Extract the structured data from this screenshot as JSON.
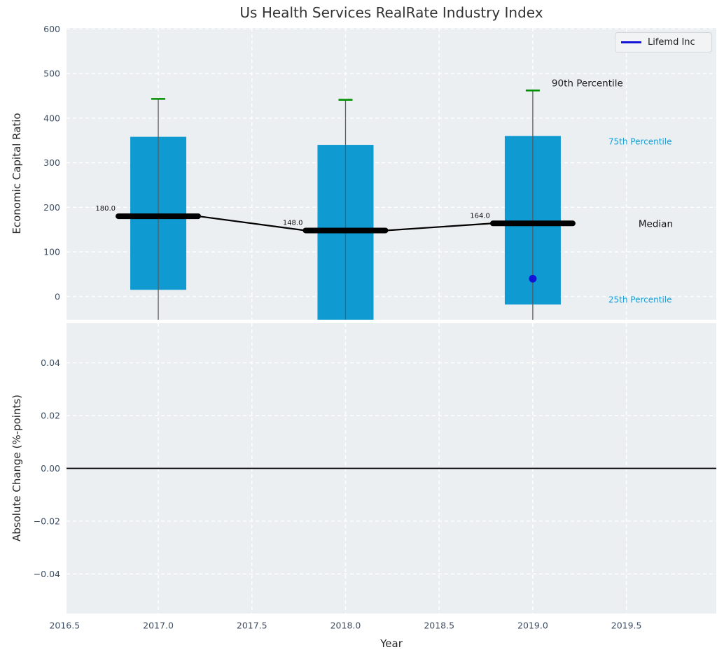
{
  "colors": {
    "bar": "#0f9ad2",
    "accent_blue": "#1414d8",
    "green_cap": "#008f00",
    "plot_bg": "#ebeff1",
    "grid": "#ffffff",
    "tick_text": "#3e4e63",
    "cyan_text": "#189fd8",
    "median_line": "#000000",
    "whisker": "#5a5a5a",
    "zero_line": "#000000",
    "title_text": "#333333"
  },
  "chart_data": [
    {
      "type": "box-bar-timeseries",
      "title": "Us Health Services RealRate Industry Index",
      "ylabel": "Economic Capital Ratio",
      "ylim": [
        -52,
        602
      ],
      "xlim": [
        2016.51,
        2019.98
      ],
      "grid": true,
      "yticks": [
        {
          "v": 0,
          "label": "0"
        },
        {
          "v": 100,
          "label": "100"
        },
        {
          "v": 200,
          "label": "200"
        },
        {
          "v": 300,
          "label": "300"
        },
        {
          "v": 400,
          "label": "400"
        },
        {
          "v": 500,
          "label": "500"
        },
        {
          "v": 600,
          "label": "600"
        }
      ],
      "xticks": [
        {
          "v": 2016.5,
          "label": "2016.5"
        },
        {
          "v": 2017.0,
          "label": "2017.0"
        },
        {
          "v": 2017.5,
          "label": "2017.5"
        },
        {
          "v": 2018.0,
          "label": "2018.0"
        },
        {
          "v": 2018.5,
          "label": "2018.5"
        },
        {
          "v": 2019.0,
          "label": "2019.0"
        },
        {
          "v": 2019.5,
          "label": "2019.5"
        }
      ],
      "legend": {
        "label": "Lifemd Inc",
        "position": "upper right"
      },
      "annotations": {
        "p90": "90th Percentile",
        "p75": "75th Percentile",
        "median": "Median",
        "p25": "25th Percentile"
      },
      "boxes": [
        {
          "year": 2017,
          "p90": 443,
          "q75": 358,
          "median": 180,
          "q25": 15,
          "median_label": "180.0",
          "whisker_below_axis": true
        },
        {
          "year": 2018,
          "p90": 441,
          "q75": 340,
          "median": 148,
          "q25": -60,
          "median_label": "148.0",
          "q25_clipped_below_axis": true,
          "whisker_below_axis": true
        },
        {
          "year": 2019,
          "p90": 462,
          "q75": 360,
          "median": 164,
          "q25": -18,
          "median_label": "164.0",
          "whisker_below_axis": true
        }
      ],
      "points": [
        {
          "series": "Lifemd Inc",
          "year": 2019,
          "value": 40
        }
      ]
    },
    {
      "type": "line",
      "ylabel": "Absolute Change (%-points)",
      "xlabel": "Year",
      "ylim": [
        -0.055,
        0.055
      ],
      "xlim": [
        2016.51,
        2019.98
      ],
      "grid": true,
      "zero_line": 0,
      "series": [],
      "yticks": [
        {
          "v": 0.04,
          "label": "0.04"
        },
        {
          "v": 0.02,
          "label": "0.02"
        },
        {
          "v": 0,
          "label": "0.00"
        },
        {
          "v": -0.02,
          "label": "−0.02"
        },
        {
          "v": -0.04,
          "label": "−0.04"
        }
      ],
      "xticks": [
        {
          "v": 2016.5,
          "label": "2016.5"
        },
        {
          "v": 2017.0,
          "label": "2017.0"
        },
        {
          "v": 2017.5,
          "label": "2017.5"
        },
        {
          "v": 2018.0,
          "label": "2018.0"
        },
        {
          "v": 2018.5,
          "label": "2018.5"
        },
        {
          "v": 2019.0,
          "label": "2019.0"
        },
        {
          "v": 2019.5,
          "label": "2019.5"
        }
      ]
    }
  ]
}
